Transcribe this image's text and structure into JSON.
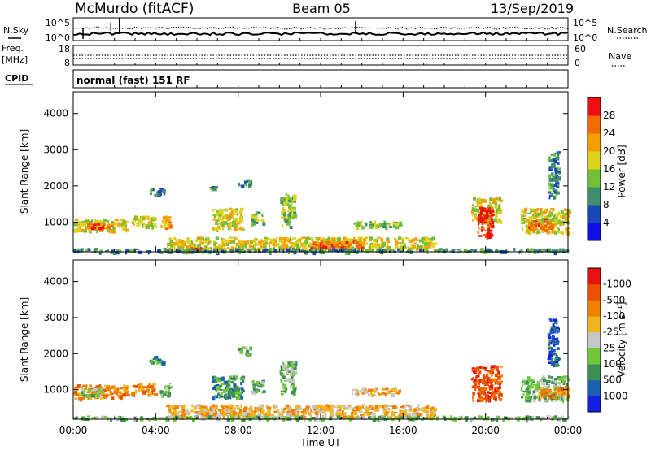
{
  "header": {
    "station": "McMurdo (fitACF)",
    "beam": "Beam 05",
    "date": "13/Sep/2019"
  },
  "status": {
    "nsky_label": "N.Sky",
    "nsearch_label": "N.Search",
    "noise_ticks_left": [
      "10^5",
      "10^0"
    ],
    "noise_ticks_right": [
      "10^5",
      "10^0"
    ],
    "freq_label": "Freq.",
    "freq_unit": "[MHz]",
    "freq_ticks": [
      "18",
      "8"
    ],
    "nave_label": "Nave",
    "nave_ticks": [
      "60",
      "0"
    ],
    "cpid_label": "CPID",
    "cpid_value": "normal (fast) 151 RF"
  },
  "chart_data": [
    {
      "type": "heatmap",
      "name": "power",
      "ylabel": "Slant Range [km]",
      "yticks": [
        "1000",
        "2000",
        "3000",
        "4000"
      ],
      "ylim": [
        180,
        4600
      ],
      "xlim": [
        0,
        24
      ],
      "colorbar_label": "Power [dB]",
      "colorbar_ticks": [
        "4",
        "8",
        "12",
        "16",
        "20",
        "24",
        "28"
      ],
      "colors": [
        "#1010e6",
        "#1a47b8",
        "#3f8f6e",
        "#72bf3a",
        "#dcd21e",
        "#f5a000",
        "#f26a00",
        "#ee1010"
      ],
      "blobs": [
        {
          "t0": 0.0,
          "t1": 2.6,
          "r0": 780,
          "r1": 1100,
          "level": 4
        },
        {
          "t0": 0.6,
          "t1": 1.9,
          "r0": 850,
          "r1": 1000,
          "level": 6
        },
        {
          "t0": 2.8,
          "t1": 4.0,
          "r0": 880,
          "r1": 1180,
          "level": 4
        },
        {
          "t0": 4.2,
          "t1": 4.7,
          "r0": 850,
          "r1": 1200,
          "level": 5
        },
        {
          "t0": 6.7,
          "t1": 8.2,
          "r0": 800,
          "r1": 1400,
          "level": 4
        },
        {
          "t0": 8.6,
          "t1": 9.2,
          "r0": 950,
          "r1": 1300,
          "level": 3
        },
        {
          "t0": 10.0,
          "t1": 10.7,
          "r0": 900,
          "r1": 1800,
          "level": 3
        },
        {
          "t0": 13.5,
          "t1": 15.8,
          "r0": 880,
          "r1": 1050,
          "level": 3
        },
        {
          "t0": 19.3,
          "t1": 20.7,
          "r0": 1000,
          "r1": 1700,
          "level": 4
        },
        {
          "t0": 19.6,
          "t1": 20.3,
          "r0": 620,
          "r1": 1450,
          "level": 7
        },
        {
          "t0": 21.7,
          "t1": 24.0,
          "r0": 720,
          "r1": 1400,
          "level": 4
        },
        {
          "t0": 22.0,
          "t1": 23.2,
          "r0": 800,
          "r1": 1100,
          "level": 6
        },
        {
          "t0": 4.5,
          "t1": 17.5,
          "r0": 260,
          "r1": 600,
          "level": 4
        },
        {
          "t0": 11.5,
          "t1": 14.0,
          "r0": 300,
          "r1": 500,
          "level": 6
        },
        {
          "t0": 5.5,
          "t1": 6.3,
          "r0": 200,
          "r1": 330,
          "level": 7
        },
        {
          "t0": 0.0,
          "t1": 24.0,
          "r0": 190,
          "r1": 290,
          "level": 2
        },
        {
          "t0": 3.7,
          "t1": 4.4,
          "r0": 1750,
          "r1": 1950,
          "level": 2
        },
        {
          "t0": 6.6,
          "t1": 6.9,
          "r0": 1900,
          "r1": 2000,
          "level": 2
        },
        {
          "t0": 8.0,
          "t1": 8.6,
          "r0": 2000,
          "r1": 2200,
          "level": 2
        },
        {
          "t0": 23.0,
          "t1": 23.5,
          "r0": 1700,
          "r1": 3000,
          "level": 2
        }
      ]
    },
    {
      "type": "heatmap",
      "name": "velocity",
      "ylabel": "Slant Range [km]",
      "yticks": [
        "1000",
        "2000",
        "3000",
        "4000"
      ],
      "ylim": [
        180,
        4600
      ],
      "xlim": [
        0,
        24
      ],
      "xticks": [
        "00:00",
        "04:00",
        "08:00",
        "12:00",
        "16:00",
        "20:00",
        "00:00"
      ],
      "xlabel": "Time UT",
      "colorbar_label": "Velocity [m s⁻¹]",
      "colorbar_ticks": [
        "1000",
        "500",
        "100",
        "25",
        "-25",
        "-100",
        "-500",
        "-1000"
      ],
      "colors": [
        "#1420e0",
        "#1a5fb0",
        "#3d8e55",
        "#6fc83a",
        "#c6c6c6",
        "#f2b41e",
        "#f08000",
        "#ea5000",
        "#e81010"
      ],
      "blobs": [
        {
          "t0": 0.0,
          "t1": 2.6,
          "r0": 780,
          "r1": 1150,
          "level": 6
        },
        {
          "t0": 0.2,
          "t1": 1.4,
          "r0": 850,
          "r1": 1050,
          "level": 3
        },
        {
          "t0": 2.8,
          "t1": 4.0,
          "r0": 880,
          "r1": 1180,
          "level": 6
        },
        {
          "t0": 4.2,
          "t1": 4.7,
          "r0": 850,
          "r1": 1200,
          "level": 3
        },
        {
          "t0": 6.7,
          "t1": 8.2,
          "r0": 800,
          "r1": 1400,
          "level": 2
        },
        {
          "t0": 8.6,
          "t1": 9.2,
          "r0": 950,
          "r1": 1300,
          "level": 3
        },
        {
          "t0": 10.0,
          "t1": 10.7,
          "r0": 900,
          "r1": 1800,
          "level": 3
        },
        {
          "t0": 13.5,
          "t1": 15.8,
          "r0": 880,
          "r1": 1050,
          "level": 5
        },
        {
          "t0": 19.3,
          "t1": 20.7,
          "r0": 700,
          "r1": 1700,
          "level": 7
        },
        {
          "t0": 21.7,
          "t1": 24.0,
          "r0": 720,
          "r1": 1400,
          "level": 3
        },
        {
          "t0": 22.5,
          "t1": 24.0,
          "r0": 800,
          "r1": 1100,
          "level": 6
        },
        {
          "t0": 4.5,
          "t1": 17.5,
          "r0": 260,
          "r1": 600,
          "level": 5
        },
        {
          "t0": 0.0,
          "t1": 24.0,
          "r0": 190,
          "r1": 290,
          "level": 3
        },
        {
          "t0": 3.7,
          "t1": 4.4,
          "r0": 1750,
          "r1": 1950,
          "level": 2
        },
        {
          "t0": 8.0,
          "t1": 8.6,
          "r0": 2000,
          "r1": 2200,
          "level": 2
        },
        {
          "t0": 23.0,
          "t1": 23.5,
          "r0": 1700,
          "r1": 3000,
          "level": 1
        }
      ]
    }
  ]
}
